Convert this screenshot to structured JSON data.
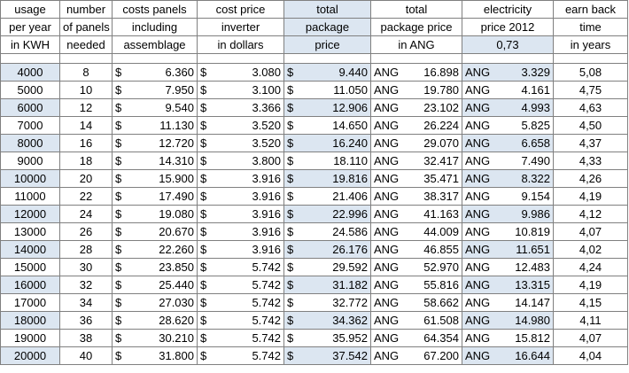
{
  "headers": [
    [
      "usage",
      "per year",
      "in KWH"
    ],
    [
      "number",
      "of panels",
      "needed"
    ],
    [
      "costs panels",
      "including",
      "assemblage"
    ],
    [
      "cost price",
      "inverter",
      "in dollars"
    ],
    [
      "total",
      "package",
      "price"
    ],
    [
      "total",
      "package price",
      "in ANG"
    ],
    [
      "electricity",
      "price 2012",
      "0,73"
    ],
    [
      "earn back",
      "time",
      "in years"
    ]
  ],
  "currency_usd": "$",
  "currency_ang": "ANG",
  "rows": [
    {
      "usage": "4000",
      "panels": "8",
      "cost_panels": "6.360",
      "inverter": "3.080",
      "total": "9.440",
      "total_ang": "16.898",
      "elec": "3.329",
      "earn": "5,08"
    },
    {
      "usage": "5000",
      "panels": "10",
      "cost_panels": "7.950",
      "inverter": "3.100",
      "total": "11.050",
      "total_ang": "19.780",
      "elec": "4.161",
      "earn": "4,75"
    },
    {
      "usage": "6000",
      "panels": "12",
      "cost_panels": "9.540",
      "inverter": "3.366",
      "total": "12.906",
      "total_ang": "23.102",
      "elec": "4.993",
      "earn": "4,63"
    },
    {
      "usage": "7000",
      "panels": "14",
      "cost_panels": "11.130",
      "inverter": "3.520",
      "total": "14.650",
      "total_ang": "26.224",
      "elec": "5.825",
      "earn": "4,50"
    },
    {
      "usage": "8000",
      "panels": "16",
      "cost_panels": "12.720",
      "inverter": "3.520",
      "total": "16.240",
      "total_ang": "29.070",
      "elec": "6.658",
      "earn": "4,37"
    },
    {
      "usage": "9000",
      "panels": "18",
      "cost_panels": "14.310",
      "inverter": "3.800",
      "total": "18.110",
      "total_ang": "32.417",
      "elec": "7.490",
      "earn": "4,33"
    },
    {
      "usage": "10000",
      "panels": "20",
      "cost_panels": "15.900",
      "inverter": "3.916",
      "total": "19.816",
      "total_ang": "35.471",
      "elec": "8.322",
      "earn": "4,26"
    },
    {
      "usage": "11000",
      "panels": "22",
      "cost_panels": "17.490",
      "inverter": "3.916",
      "total": "21.406",
      "total_ang": "38.317",
      "elec": "9.154",
      "earn": "4,19"
    },
    {
      "usage": "12000",
      "panels": "24",
      "cost_panels": "19.080",
      "inverter": "3.916",
      "total": "22.996",
      "total_ang": "41.163",
      "elec": "9.986",
      "earn": "4,12"
    },
    {
      "usage": "13000",
      "panels": "26",
      "cost_panels": "20.670",
      "inverter": "3.916",
      "total": "24.586",
      "total_ang": "44.009",
      "elec": "10.819",
      "earn": "4,07"
    },
    {
      "usage": "14000",
      "panels": "28",
      "cost_panels": "22.260",
      "inverter": "3.916",
      "total": "26.176",
      "total_ang": "46.855",
      "elec": "11.651",
      "earn": "4,02"
    },
    {
      "usage": "15000",
      "panels": "30",
      "cost_panels": "23.850",
      "inverter": "5.742",
      "total": "29.592",
      "total_ang": "52.970",
      "elec": "12.483",
      "earn": "4,24"
    },
    {
      "usage": "16000",
      "panels": "32",
      "cost_panels": "25.440",
      "inverter": "5.742",
      "total": "31.182",
      "total_ang": "55.816",
      "elec": "13.315",
      "earn": "4,19"
    },
    {
      "usage": "17000",
      "panels": "34",
      "cost_panels": "27.030",
      "inverter": "5.742",
      "total": "32.772",
      "total_ang": "58.662",
      "elec": "14.147",
      "earn": "4,15"
    },
    {
      "usage": "18000",
      "panels": "36",
      "cost_panels": "28.620",
      "inverter": "5.742",
      "total": "34.362",
      "total_ang": "61.508",
      "elec": "14.980",
      "earn": "4,11"
    },
    {
      "usage": "19000",
      "panels": "38",
      "cost_panels": "30.210",
      "inverter": "5.742",
      "total": "35.952",
      "total_ang": "64.354",
      "elec": "15.812",
      "earn": "4,07"
    },
    {
      "usage": "20000",
      "panels": "40",
      "cost_panels": "31.800",
      "inverter": "5.742",
      "total": "37.542",
      "total_ang": "67.200",
      "elec": "16.644",
      "earn": "4,04"
    }
  ],
  "colors": {
    "shade": "#dce6f1",
    "border": "#808080"
  }
}
